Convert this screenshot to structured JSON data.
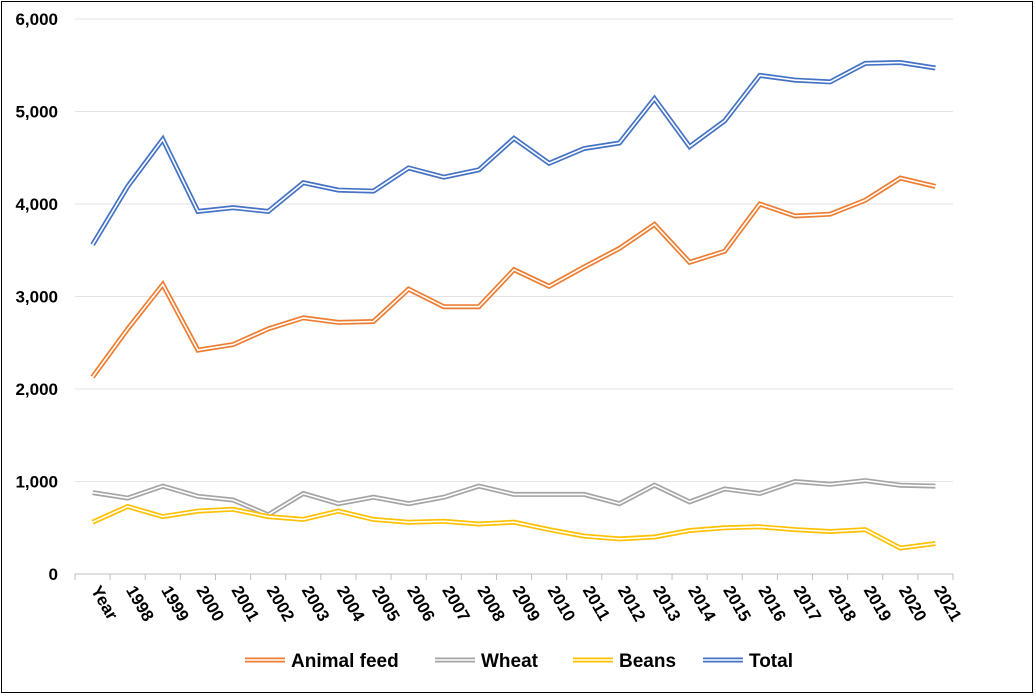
{
  "chart_data": {
    "type": "line",
    "title": "",
    "xlabel": "",
    "ylabel": "",
    "categories": [
      "Year",
      "1998",
      "1999",
      "2000",
      "2001",
      "2002",
      "2003",
      "2004",
      "2005",
      "2006",
      "2007",
      "2008",
      "2009",
      "2010",
      "2011",
      "2012",
      "2013",
      "2014",
      "2015",
      "2016",
      "2017",
      "2018",
      "2019",
      "2020",
      "2021"
    ],
    "y_ticks": [
      "0",
      "1,000",
      "2,000",
      "3,000",
      "4,000",
      "5,000",
      "6,000"
    ],
    "ylim": [
      0,
      6000
    ],
    "grid": true,
    "legend_position": "bottom",
    "series": [
      {
        "name": "Animal feed",
        "color": "#ED7D31",
        "values": [
          2130,
          2650,
          3130,
          2420,
          2480,
          2650,
          2770,
          2720,
          2730,
          3080,
          2890,
          2890,
          3290,
          3110,
          3320,
          3520,
          3780,
          3370,
          3490,
          4000,
          3870,
          3890,
          4040,
          4280,
          4190
        ]
      },
      {
        "name": "Wheat",
        "color": "#A5A5A5",
        "values": [
          880,
          820,
          950,
          840,
          800,
          640,
          870,
          760,
          830,
          760,
          830,
          950,
          860,
          860,
          860,
          760,
          960,
          780,
          920,
          870,
          1000,
          970,
          1010,
          960,
          950
        ]
      },
      {
        "name": "Beans",
        "color": "#FFC000",
        "values": [
          560,
          730,
          620,
          680,
          700,
          620,
          590,
          680,
          590,
          560,
          570,
          540,
          560,
          480,
          410,
          380,
          400,
          470,
          500,
          510,
          480,
          460,
          480,
          280,
          330
        ]
      },
      {
        "name": "Total",
        "color": "#4472C4",
        "values": [
          3560,
          4190,
          4700,
          3920,
          3960,
          3920,
          4230,
          4150,
          4140,
          4390,
          4290,
          4370,
          4710,
          4440,
          4600,
          4660,
          5140,
          4620,
          4900,
          5390,
          5340,
          5320,
          5520,
          5530,
          5470
        ]
      }
    ]
  }
}
